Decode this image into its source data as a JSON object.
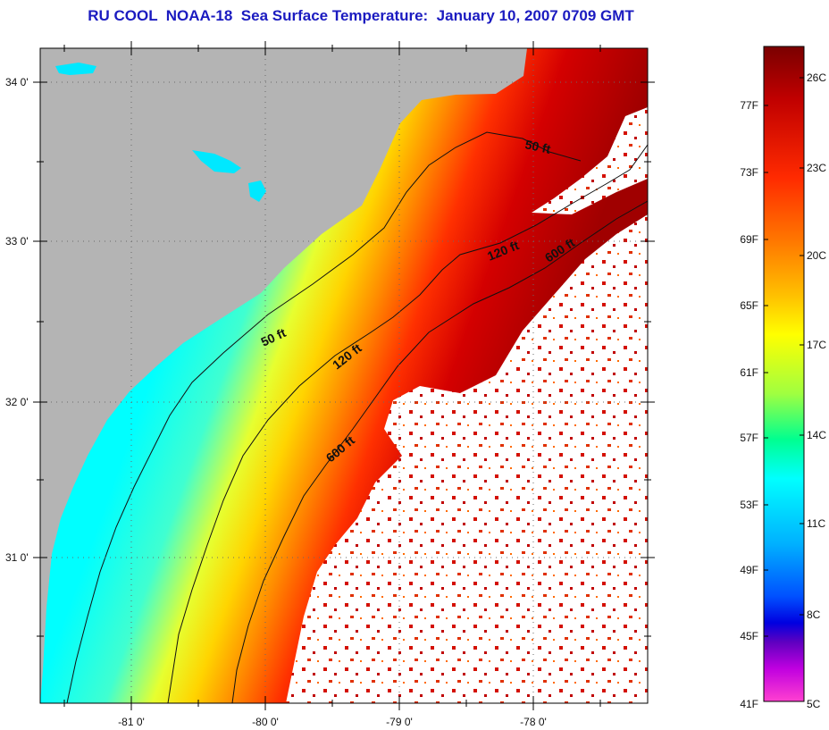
{
  "title": "RU COOL  NOAA-18  Sea Surface Temperature:  January 10, 2007 0709 GMT",
  "map": {
    "latitude_labels": [
      "34 0'",
      "33 0'",
      "32 0'",
      "31 0'"
    ],
    "longitude_labels": [
      "-81 0'",
      "-80 0'",
      "-79 0'",
      "-78 0'"
    ],
    "contour_labels": [
      "50 ft",
      "120 ft",
      "600 ft",
      "50 ft",
      "120 ft",
      "600 ft"
    ],
    "colors": {
      "land": "#b4b4b4",
      "cloud_nodata": "#ffffff",
      "contour": "#111111",
      "grid_dots": "#6a6a6a"
    }
  },
  "colorbar": {
    "fahrenheit_labels": [
      "77F",
      "73F",
      "69F",
      "65F",
      "61F",
      "57F",
      "53F",
      "49F",
      "45F",
      "41F"
    ],
    "celsius_labels": [
      "26C",
      "23C",
      "20C",
      "17C",
      "14C",
      "11C",
      "8C",
      "5C"
    ],
    "gradient_colors": [
      "#7a0000",
      "#c00000",
      "#ff2a00",
      "#ff7a00",
      "#ffc000",
      "#ffff00",
      "#a0ff40",
      "#00ff90",
      "#00ffff",
      "#00b0ff",
      "#0050ff",
      "#0000e0",
      "#6000c0",
      "#c000e0",
      "#ff40d0"
    ]
  }
}
